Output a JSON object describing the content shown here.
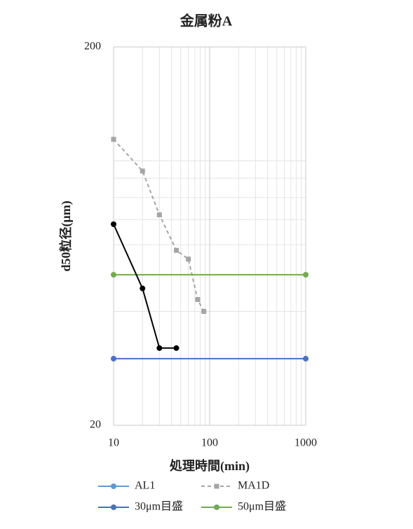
{
  "chart_data": {
    "type": "line",
    "title": "金属粉A",
    "x_label": "処理時間(min)",
    "y_label": "d50粒径(μm)",
    "xscale": "log",
    "yscale": "log",
    "grid": true,
    "xlim": [
      10,
      1000
    ],
    "xticks": [
      10,
      100,
      1000
    ],
    "ylim": [
      20,
      200
    ],
    "yticks": [
      20,
      200
    ],
    "series": [
      {
        "name": "AL1",
        "color": "#5b9bd5",
        "dash": false,
        "marker": "circle",
        "x": [],
        "values": []
      },
      {
        "name": "MA1D",
        "color": "#a5a5a5",
        "dash": true,
        "marker": "square",
        "x": [
          10,
          20,
          30,
          45,
          60,
          75,
          87
        ],
        "values": [
          114,
          94,
          72,
          58,
          55,
          43,
          40
        ]
      },
      {
        "name": "30μm目盛",
        "color": "#4472c4",
        "dash": false,
        "marker": "circle",
        "x": [
          10,
          1000
        ],
        "values": [
          30,
          30
        ]
      },
      {
        "name": "50μm目盛",
        "color": "#70ad47",
        "dash": false,
        "marker": "circle",
        "x": [
          10,
          1000
        ],
        "values": [
          50,
          50
        ]
      },
      {
        "color": "#000000",
        "dash": false,
        "marker": "circle",
        "x": [
          10,
          20,
          30,
          45
        ],
        "values": [
          68,
          46,
          32,
          32
        ]
      }
    ]
  }
}
